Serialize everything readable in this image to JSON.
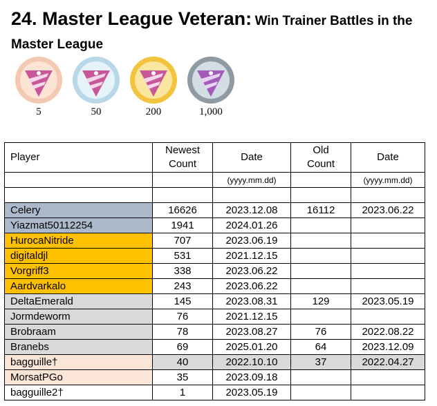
{
  "title": {
    "main": "24. Master League Veteran:",
    "sub_line1": "Win Trainer Battles in the",
    "sub_line2": "Master League"
  },
  "medals": [
    {
      "label": "5",
      "tier": "bronze",
      "rim": "#f4c9b3",
      "core": "#fbe3d6"
    },
    {
      "label": "50",
      "tier": "silver",
      "rim": "#b8d8e8",
      "core": "#e6f3f9"
    },
    {
      "label": "200",
      "tier": "gold",
      "rim": "#f2c33c",
      "core": "#fbe6a1"
    },
    {
      "label": "1,000",
      "tier": "platinum",
      "rim": "#8e9aa4",
      "core": "#d3dde4"
    }
  ],
  "table": {
    "headers": {
      "player": "Player",
      "newest_count_1": "Newest",
      "newest_count_2": "Count",
      "date": "Date",
      "old_count_1": "Old",
      "old_count_2": "Count",
      "old_date": "Date"
    },
    "format_row": {
      "date_format": "(yyyy.mm.dd)",
      "old_date_format": "(yyyy.mm.dd)"
    },
    "colors": {
      "blue": "#acb9ca",
      "gold": "#ffc000",
      "gray": "#d9d9d9",
      "peach": "#fbe5d6"
    },
    "rows": [
      {
        "player": "Celery",
        "newest": "16626",
        "date": "2023.12.08",
        "old": "16112",
        "old_date": "2023.06.22",
        "tier": "blue"
      },
      {
        "player": "Yiazmat50112254",
        "newest": "1941",
        "date": "2024.01.26",
        "old": "",
        "old_date": "",
        "tier": "blue"
      },
      {
        "player": "HurocaNitride",
        "newest": "707",
        "date": "2023.06.19",
        "old": "",
        "old_date": "",
        "tier": "gold"
      },
      {
        "player": "digitaldjl",
        "newest": "531",
        "date": "2021.12.15",
        "old": "",
        "old_date": "",
        "tier": "gold"
      },
      {
        "player": "Vorgriff3",
        "newest": "338",
        "date": "2023.06.22",
        "old": "",
        "old_date": "",
        "tier": "gold"
      },
      {
        "player": "Aardvarkalo",
        "newest": "243",
        "date": "2023.06.22",
        "old": "",
        "old_date": "",
        "tier": "gold"
      },
      {
        "player": "DeltaEmerald",
        "newest": "145",
        "date": "2023.08.31",
        "old": "129",
        "old_date": "2023.05.19",
        "tier": "gray"
      },
      {
        "player": "Jormdeworm",
        "newest": "76",
        "date": "2021.12.15",
        "old": "",
        "old_date": "",
        "tier": "gray"
      },
      {
        "player": "Brobraam",
        "newest": "78",
        "date": "2023.08.27",
        "old": "76",
        "old_date": "2022.08.22",
        "tier": "gray"
      },
      {
        "player": "Branebs",
        "newest": "69",
        "date": "2025.01.20",
        "old": "64",
        "old_date": "2023.12.09",
        "tier": "gray"
      },
      {
        "player": "bagguille†",
        "newest": "40",
        "date": "2022.10.10",
        "old": "37",
        "old_date": "2022.04.27",
        "tier": "peach",
        "row_gray": true
      },
      {
        "player": "MorsatPGo",
        "newest": "35",
        "date": "2023.09.18",
        "old": "",
        "old_date": "",
        "tier": "peach"
      },
      {
        "player": "bagguille2†",
        "newest": "1",
        "date": "2023.05.19",
        "old": "",
        "old_date": "",
        "tier": "none"
      }
    ]
  }
}
